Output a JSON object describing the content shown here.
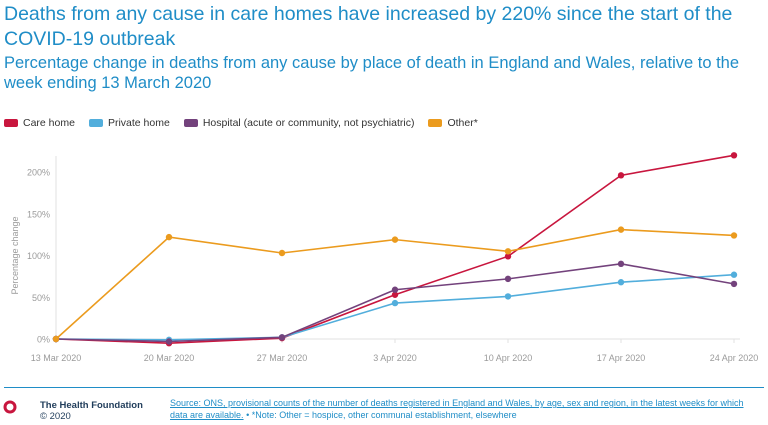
{
  "title": "Deaths from any cause in care homes have increased by 220% since the start of the COVID-19 outbreak",
  "subtitle": "Percentage change in deaths from any cause by place of death in England and Wales, relative to the week ending 13 March 2020",
  "colors": {
    "care_home": "#c8163e",
    "private_home": "#52aedc",
    "hospital": "#73427c",
    "other": "#eb9b1e",
    "title": "#1f8dc7",
    "axis_text": "#9b9b9b"
  },
  "chart_data": {
    "type": "line",
    "title": "",
    "xlabel": "",
    "ylabel": "Percentage change",
    "x": [
      "13 Mar 2020",
      "20 Mar 2020",
      "27 Mar 2020",
      "3 Apr 2020",
      "10 Apr 2020",
      "17 Apr 2020",
      "24 Apr 2020"
    ],
    "yticks": [
      "0%",
      "50%",
      "100%",
      "150%",
      "200%"
    ],
    "ylim": [
      0,
      220
    ],
    "grid": false,
    "legend_position": "top-left",
    "series": [
      {
        "name": "Care home",
        "color": "#c8163e",
        "values": [
          0,
          -5,
          1,
          53,
          99,
          196,
          220
        ]
      },
      {
        "name": "Private home",
        "color": "#52aedc",
        "values": [
          0,
          -1,
          2,
          43,
          51,
          68,
          77
        ]
      },
      {
        "name": "Hospital (acute or community, not psychiatric)",
        "color": "#73427c",
        "values": [
          0,
          -3,
          2,
          59,
          72,
          90,
          66
        ]
      },
      {
        "name": "Other*",
        "color": "#eb9b1e",
        "values": [
          0,
          122,
          103,
          119,
          105,
          131,
          124
        ]
      }
    ]
  },
  "footer": {
    "org_name": "The Health Foundation",
    "copyright": "© 2020",
    "source_text": "Source: ONS, provisional counts of the number of deaths registered in England and Wales, by age, sex and region, in the latest weeks for which data are available.",
    "note_text": "*Note: Other = hospice, other communal establishment, elsewhere"
  }
}
